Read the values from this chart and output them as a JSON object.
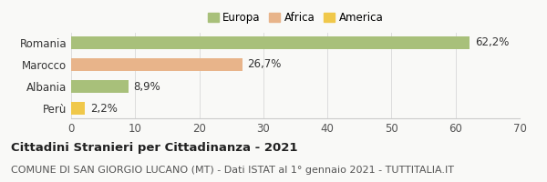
{
  "categories": [
    "Romania",
    "Marocco",
    "Albania",
    "Perù"
  ],
  "values": [
    62.2,
    26.7,
    8.9,
    2.2
  ],
  "labels": [
    "62,2%",
    "26,7%",
    "8,9%",
    "2,2%"
  ],
  "bar_colors": [
    "#a8c07a",
    "#e8b48a",
    "#a8c07a",
    "#f0c84a"
  ],
  "legend": [
    {
      "label": "Europa",
      "color": "#a8c07a"
    },
    {
      "label": "Africa",
      "color": "#e8b48a"
    },
    {
      "label": "America",
      "color": "#f0c84a"
    }
  ],
  "xlim": [
    0,
    70
  ],
  "xticks": [
    0,
    10,
    20,
    30,
    40,
    50,
    60,
    70
  ],
  "title": "Cittadini Stranieri per Cittadinanza - 2021",
  "subtitle": "COMUNE DI SAN GIORGIO LUCANO (MT) - Dati ISTAT al 1° gennaio 2021 - TUTTITALIA.IT",
  "background_color": "#f9f9f7",
  "bar_height": 0.55,
  "title_fontsize": 9.5,
  "subtitle_fontsize": 8,
  "tick_fontsize": 8.5,
  "label_fontsize": 8.5
}
